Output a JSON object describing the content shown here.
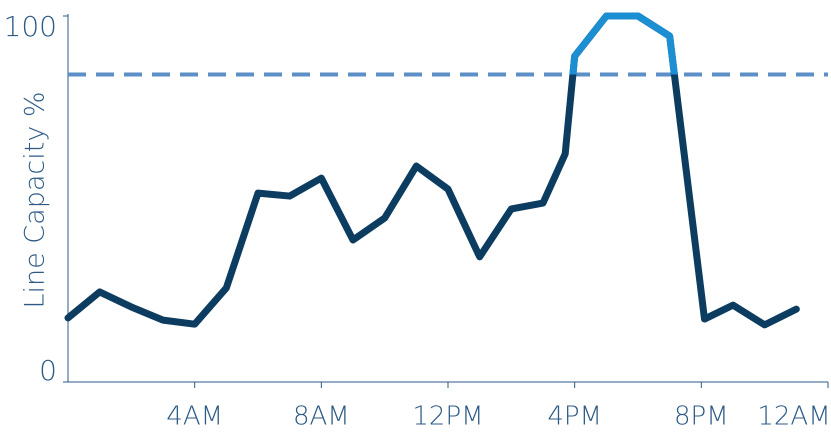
{
  "chart_data": {
    "type": "line",
    "y_label": "Line Capacity  %",
    "x": [
      0,
      1,
      2,
      3,
      4,
      5,
      6,
      7,
      8,
      9,
      10,
      11,
      12,
      13,
      14,
      15,
      15.7,
      16,
      17,
      18,
      19,
      20.1,
      21,
      22,
      23
    ],
    "series": [
      {
        "color": "#0d3c61",
        "highlight_color": "#1b8fd2",
        "values": [
          17.5,
          24.6,
          20.5,
          16.9,
          15.8,
          25.7,
          51.6,
          50.8,
          55.7,
          38.8,
          44.8,
          59.0,
          52.7,
          34.2,
          47.3,
          48.9,
          62.3,
          89,
          100,
          100,
          94.5,
          17.2,
          21,
          15.6,
          19.9
        ]
      }
    ],
    "threshold": 84,
    "threshold_color": "#5b8fc6",
    "xlim": [
      0,
      24
    ],
    "xticks": [
      {
        "value": 4,
        "label": "4AM"
      },
      {
        "value": 8,
        "label": "8AM"
      },
      {
        "value": 12,
        "label": "12PM"
      },
      {
        "value": 16,
        "label": "4PM"
      },
      {
        "value": 20,
        "label": "8PM"
      },
      {
        "value": 24,
        "label": "12AM"
      }
    ],
    "ylim": [
      0,
      100
    ],
    "yticks": [
      0,
      100
    ]
  }
}
